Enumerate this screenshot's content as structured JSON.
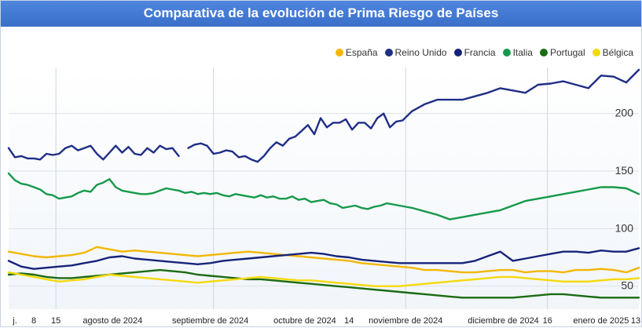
{
  "title": "Comparativa de la evolución de Prima Riesgo de Países",
  "chart_data": {
    "type": "line",
    "title": "Comparativa de la evolución de Prima Riesgo de Países",
    "xlabel": "",
    "ylabel": "",
    "x_range": [
      0,
      100
    ],
    "ylim": [
      30,
      240
    ],
    "y_ticks": [
      50,
      100,
      150,
      200
    ],
    "x_ticks": [
      {
        "pos": 1,
        "label": "j."
      },
      {
        "pos": 4,
        "label": "8"
      },
      {
        "pos": 7.5,
        "label": "15"
      },
      {
        "pos": 16.5,
        "label": "agosto de 2024"
      },
      {
        "pos": 32,
        "label": "septiembre de 2024"
      },
      {
        "pos": 47,
        "label": "octubre de 2024"
      },
      {
        "pos": 54,
        "label": "14"
      },
      {
        "pos": 63,
        "label": "noviembre de 2024"
      },
      {
        "pos": 78.5,
        "label": "diciembre de 2024"
      },
      {
        "pos": 85.5,
        "label": "16"
      },
      {
        "pos": 94,
        "label": "enero de 2025"
      },
      {
        "pos": 99.5,
        "label": "13"
      }
    ],
    "vertical_gridlines": [
      7.5,
      32.5,
      63,
      85.5
    ],
    "series": [
      {
        "name": "España",
        "color": "#f2b705",
        "x": [
          0,
          2,
          4,
          6,
          8,
          10,
          12,
          14,
          16,
          18,
          20,
          22,
          24,
          26,
          28,
          30,
          32,
          34,
          36,
          38,
          40,
          42,
          44,
          46,
          48,
          50,
          52,
          54,
          56,
          58,
          60,
          62,
          64,
          66,
          68,
          70,
          72,
          74,
          76,
          78,
          80,
          82,
          84,
          86,
          88,
          90,
          92,
          94,
          96,
          98,
          100
        ],
        "y": [
          80,
          78,
          76,
          75,
          76,
          77,
          79,
          84,
          82,
          80,
          81,
          80,
          79,
          78,
          77,
          76,
          77,
          78,
          79,
          80,
          79,
          78,
          77,
          76,
          75,
          74,
          73,
          72,
          70,
          69,
          68,
          67,
          66,
          64,
          64,
          63,
          62,
          62,
          63,
          64,
          64,
          62,
          63,
          63,
          62,
          64,
          64,
          65,
          64,
          62,
          66
        ]
      },
      {
        "name": "Reino Unido",
        "color": "#1f2e86",
        "x": [
          0,
          1,
          2,
          3,
          4,
          5,
          6,
          7,
          8,
          9,
          10,
          11,
          12,
          13,
          14,
          15,
          16,
          17,
          18,
          19,
          20,
          21,
          22,
          23,
          24,
          25,
          26,
          27,
          27.5,
          28.5,
          29.5,
          30.5,
          31.5,
          32.5,
          33.5,
          34.5,
          35.5,
          36.5,
          37.5,
          38.5,
          39.5,
          40.5,
          41.5,
          42.5,
          43.5,
          44.5,
          45.5,
          46.5,
          47.5,
          48.5,
          49.5,
          50.5,
          51.5,
          52.5,
          53.5,
          54.5,
          55.5,
          56.5,
          57.5,
          58.5,
          59.5,
          60.5,
          61.5,
          62.5,
          64,
          66,
          68,
          70,
          72,
          74,
          76,
          78,
          80,
          82,
          84,
          86,
          88,
          90,
          92,
          94,
          96,
          98,
          100
        ],
        "y": [
          170,
          162,
          163,
          161,
          161,
          160,
          165,
          164,
          165,
          170,
          172,
          168,
          170,
          172,
          165,
          160,
          166,
          172,
          166,
          171,
          165,
          164,
          170,
          166,
          172,
          169,
          170,
          163,
          null,
          170,
          173,
          174,
          172,
          165,
          166,
          168,
          167,
          162,
          163,
          160,
          158,
          163,
          170,
          175,
          172,
          178,
          180,
          185,
          190,
          182,
          196,
          188,
          192,
          192,
          195,
          186,
          192,
          192,
          187,
          196,
          200,
          188,
          193,
          194,
          202,
          208,
          212,
          212,
          212,
          215,
          218,
          222,
          220,
          218,
          225,
          226,
          228,
          225,
          222,
          233,
          232,
          227,
          238
        ]
      },
      {
        "name": "Francia",
        "color": "#16237a",
        "x": [
          0,
          2,
          4,
          6,
          8,
          10,
          12,
          14,
          16,
          18,
          20,
          22,
          24,
          26,
          28,
          30,
          32,
          34,
          36,
          38,
          40,
          42,
          44,
          46,
          48,
          50,
          52,
          54,
          56,
          58,
          60,
          62,
          64,
          66,
          68,
          70,
          72,
          74,
          76,
          78,
          80,
          82,
          84,
          86,
          88,
          90,
          92,
          94,
          96,
          98,
          100
        ],
        "y": [
          72,
          67,
          65,
          66,
          67,
          68,
          70,
          72,
          75,
          76,
          74,
          73,
          72,
          71,
          70,
          69,
          70,
          72,
          73,
          74,
          75,
          76,
          77,
          78,
          79,
          78,
          76,
          75,
          73,
          72,
          71,
          70,
          70,
          70,
          70,
          70,
          70,
          72,
          76,
          80,
          72,
          74,
          76,
          78,
          80,
          80,
          79,
          81,
          80,
          80,
          83
        ]
      },
      {
        "name": "Italia",
        "color": "#16994b",
        "x": [
          0,
          1,
          2,
          3,
          4,
          5,
          6,
          7,
          8,
          9,
          10,
          11,
          12,
          13,
          14,
          15,
          16,
          17,
          18,
          19,
          20,
          21,
          22,
          23,
          24,
          25,
          26,
          27,
          28,
          29,
          30,
          31,
          32,
          33,
          34,
          35,
          36,
          37,
          38,
          39,
          40,
          41,
          42,
          43,
          44,
          45,
          46,
          47,
          48,
          49,
          50,
          51,
          52,
          53,
          54,
          55,
          56,
          57,
          58,
          59,
          60,
          61,
          62,
          63,
          64,
          66,
          68,
          70,
          72,
          74,
          76,
          78,
          80,
          82,
          84,
          86,
          88,
          90,
          92,
          94,
          96,
          98,
          100
        ],
        "y": [
          148,
          142,
          139,
          138,
          136,
          134,
          130,
          129,
          126,
          127,
          128,
          131,
          133,
          132,
          138,
          140,
          143,
          136,
          133,
          132,
          131,
          130,
          130,
          131,
          133,
          135,
          134,
          133,
          131,
          132,
          130,
          131,
          130,
          131,
          129,
          128,
          130,
          129,
          128,
          127,
          129,
          127,
          128,
          126,
          126,
          128,
          125,
          126,
          123,
          124,
          125,
          122,
          121,
          118,
          119,
          120,
          118,
          117,
          119,
          120,
          122,
          121,
          120,
          119,
          118,
          115,
          112,
          108,
          110,
          112,
          114,
          116,
          120,
          124,
          126,
          128,
          130,
          132,
          134,
          136,
          136,
          135,
          130
        ]
      },
      {
        "name": "Portugal",
        "color": "#1b6b12",
        "x": [
          0,
          2,
          4,
          6,
          8,
          10,
          12,
          14,
          16,
          18,
          20,
          22,
          24,
          26,
          28,
          30,
          32,
          34,
          36,
          38,
          40,
          42,
          44,
          46,
          48,
          50,
          52,
          54,
          56,
          58,
          60,
          62,
          64,
          66,
          68,
          70,
          72,
          74,
          76,
          78,
          80,
          82,
          84,
          86,
          88,
          90,
          92,
          94,
          96,
          98,
          100
        ],
        "y": [
          60,
          61,
          60,
          58,
          57,
          57,
          58,
          59,
          60,
          61,
          62,
          63,
          64,
          63,
          62,
          60,
          59,
          58,
          57,
          56,
          56,
          55,
          54,
          53,
          52,
          51,
          50,
          49,
          48,
          47,
          46,
          45,
          44,
          43,
          42,
          41,
          40,
          40,
          40,
          40,
          40,
          41,
          42,
          43,
          43,
          42,
          41,
          40,
          40,
          40,
          40
        ]
      },
      {
        "name": "Bélgica",
        "color": "#f5d90a",
        "x": [
          0,
          2,
          4,
          6,
          8,
          10,
          12,
          14,
          16,
          18,
          20,
          22,
          24,
          26,
          28,
          30,
          32,
          34,
          36,
          38,
          40,
          42,
          44,
          46,
          48,
          50,
          52,
          54,
          56,
          58,
          60,
          62,
          64,
          66,
          68,
          70,
          72,
          74,
          76,
          78,
          80,
          82,
          84,
          86,
          88,
          90,
          92,
          94,
          96,
          98,
          100
        ],
        "y": [
          62,
          60,
          58,
          56,
          54,
          55,
          56,
          58,
          60,
          59,
          58,
          57,
          56,
          55,
          54,
          53,
          54,
          55,
          56,
          57,
          58,
          57,
          56,
          55,
          55,
          54,
          53,
          52,
          51,
          50,
          50,
          50,
          51,
          52,
          53,
          54,
          55,
          56,
          57,
          58,
          58,
          57,
          56,
          55,
          54,
          54,
          54,
          55,
          56,
          56,
          57
        ]
      }
    ]
  }
}
